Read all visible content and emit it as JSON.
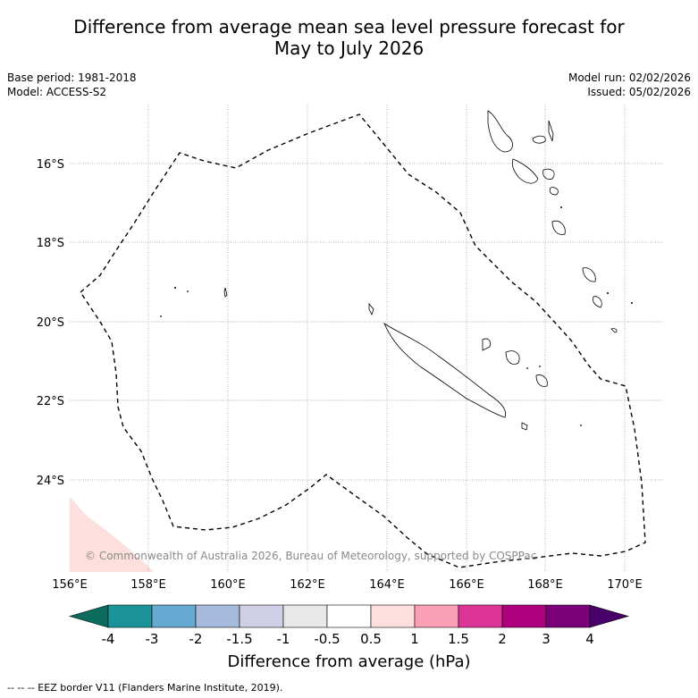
{
  "title": {
    "line1": "Difference from average mean sea level pressure forecast for",
    "line2": "May to July 2026"
  },
  "info_left": {
    "base_period": "Base period: 1981-2018",
    "model": "Model: ACCESS-S2"
  },
  "info_right": {
    "model_run": "Model run: 02/02/2026",
    "issued": "Issued: 05/02/2026"
  },
  "map": {
    "lat_labels": [
      "16°S",
      "18°S",
      "20°S",
      "22°S",
      "24°S"
    ],
    "lon_labels": [
      "156°E",
      "158°E",
      "160°E",
      "162°E",
      "164°E",
      "166°E",
      "168°E",
      "170°E"
    ],
    "copyright": "© Commonwealth of Australia 2026, Bureau of Meteorology, supported by COSPPac",
    "anomaly_fill_color": "#fde0dd"
  },
  "colorbar": {
    "ticks": [
      "-4",
      "-3",
      "-2",
      "-1.5",
      "-1",
      "-0.5",
      "0.5",
      "1",
      "1.5",
      "2",
      "3",
      "4"
    ],
    "colors": [
      "#0d6b5e",
      "#1b9399",
      "#66a9d1",
      "#a6badc",
      "#cfcfe6",
      "#e8e8e8",
      "#ffffff",
      "#fde0dd",
      "#fa9fb5",
      "#dd3497",
      "#ae017e",
      "#7a0177",
      "#49006a"
    ],
    "title": "Difference from average (hPa)"
  },
  "legend": {
    "eez_note": "--  --  -- EEZ border V11 (Flanders Marine Institute, 2019)."
  }
}
